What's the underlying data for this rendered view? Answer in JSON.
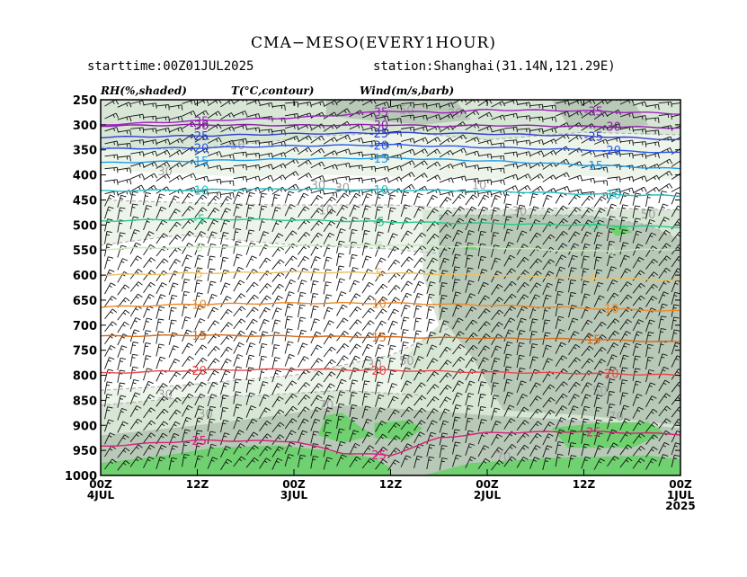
{
  "header": {
    "title": "CMA−MESO(EVERY1HOUR)",
    "starttime": "starttime:00Z01JUL2025",
    "station": "station:Shanghai(31.14N,121.29E)"
  },
  "legend": {
    "rh": "RH(%,shaded)",
    "t": "T(°C,contour)",
    "wind": "Wind(m/s,barb)"
  },
  "chart_data": {
    "type": "heatmap",
    "subtype": "time-height cross section (shaded RH, temperature contours, wind barbs)",
    "y_axis": {
      "label": "",
      "scale": "pressure (reversed)",
      "range": [
        1000,
        250
      ],
      "ticks": [
        250,
        300,
        350,
        400,
        450,
        500,
        550,
        600,
        650,
        700,
        750,
        800,
        850,
        900,
        950,
        1000
      ]
    },
    "x_axis": {
      "label": "",
      "direction": "time decreasing to the right",
      "range_hours_from_left": [
        0,
        72
      ],
      "ticks": [
        {
          "line1": "00Z",
          "line2": "4JUL",
          "line3": ""
        },
        {
          "line1": "12Z",
          "line2": "",
          "line3": ""
        },
        {
          "line1": "00Z",
          "line2": "3JUL",
          "line3": ""
        },
        {
          "line1": "12Z",
          "line2": "",
          "line3": ""
        },
        {
          "line1": "00Z",
          "line2": "2JUL",
          "line3": ""
        },
        {
          "line1": "12Z",
          "line2": "",
          "line3": ""
        },
        {
          "line1": "00Z",
          "line2": "1JUL",
          "line3": "2025"
        }
      ]
    },
    "temperature_contours": [
      {
        "value": -35,
        "label": "-35",
        "color": "#a020c0",
        "levels": [
          [
            0,
            300
          ],
          [
            12,
            292
          ],
          [
            24,
            286
          ],
          [
            30,
            280
          ],
          [
            36,
            272
          ],
          [
            42,
            276
          ],
          [
            48,
            270
          ],
          [
            60,
            272
          ],
          [
            72,
            278
          ]
        ]
      },
      {
        "value": -30,
        "label": "-30",
        "color": "#8c1ea8",
        "levels": [
          [
            0,
            302
          ],
          [
            12,
            300
          ],
          [
            24,
            301
          ],
          [
            36,
            300
          ],
          [
            42,
            303
          ],
          [
            48,
            301
          ],
          [
            60,
            303
          ],
          [
            72,
            306
          ]
        ]
      },
      {
        "value": -25,
        "label": "-25",
        "color": "#2f3fd0",
        "levels": [
          [
            0,
            325
          ],
          [
            12,
            322
          ],
          [
            24,
            318
          ],
          [
            36,
            316
          ],
          [
            48,
            318
          ],
          [
            60,
            322
          ],
          [
            72,
            330
          ]
        ]
      },
      {
        "value": -20,
        "label": "-20",
        "color": "#2c55e8",
        "levels": [
          [
            0,
            348
          ],
          [
            12,
            346
          ],
          [
            24,
            342
          ],
          [
            36,
            340
          ],
          [
            48,
            345
          ],
          [
            60,
            350
          ],
          [
            72,
            356
          ]
        ]
      },
      {
        "value": -15,
        "label": "-15",
        "color": "#1e9be8",
        "levels": [
          [
            0,
            376
          ],
          [
            12,
            372
          ],
          [
            24,
            368
          ],
          [
            36,
            366
          ],
          [
            48,
            372
          ],
          [
            60,
            380
          ],
          [
            72,
            388
          ]
        ]
      },
      {
        "value": -10,
        "label": "-10",
        "color": "#20c0c8",
        "levels": [
          [
            0,
            432
          ],
          [
            12,
            430
          ],
          [
            24,
            428
          ],
          [
            36,
            430
          ],
          [
            48,
            432
          ],
          [
            60,
            438
          ],
          [
            72,
            442
          ]
        ]
      },
      {
        "value": -5,
        "label": "-5",
        "color": "#25c98a",
        "levels": [
          [
            0,
            492
          ],
          [
            12,
            488
          ],
          [
            24,
            490
          ],
          [
            36,
            494
          ],
          [
            48,
            497
          ],
          [
            60,
            500
          ],
          [
            72,
            504
          ]
        ]
      },
      {
        "value": 0,
        "label": "0",
        "color": "#c8e6c0",
        "levels": [
          [
            0,
            548
          ],
          [
            12,
            544
          ],
          [
            24,
            542
          ],
          [
            36,
            540
          ],
          [
            48,
            545
          ],
          [
            60,
            552
          ],
          [
            72,
            548
          ]
        ]
      },
      {
        "value": 5,
        "label": "5",
        "color": "#ecc060",
        "levels": [
          [
            0,
            600
          ],
          [
            12,
            596
          ],
          [
            24,
            594
          ],
          [
            36,
            596
          ],
          [
            48,
            600
          ],
          [
            60,
            606
          ],
          [
            72,
            610
          ]
        ]
      },
      {
        "value": 10,
        "label": "10",
        "color": "#ea8a2a",
        "levels": [
          [
            0,
            664
          ],
          [
            12,
            658
          ],
          [
            24,
            656
          ],
          [
            36,
            656
          ],
          [
            48,
            660
          ],
          [
            60,
            666
          ],
          [
            72,
            672
          ]
        ]
      },
      {
        "value": 15,
        "label": "15",
        "color": "#d66a18",
        "levels": [
          [
            0,
            722
          ],
          [
            12,
            720
          ],
          [
            24,
            722
          ],
          [
            36,
            724
          ],
          [
            48,
            726
          ],
          [
            60,
            728
          ],
          [
            72,
            734
          ]
        ]
      },
      {
        "value": 20,
        "label": "20",
        "color": "#e84848",
        "levels": [
          [
            0,
            796
          ],
          [
            12,
            790
          ],
          [
            24,
            788
          ],
          [
            36,
            790
          ],
          [
            48,
            794
          ],
          [
            60,
            796
          ],
          [
            72,
            800
          ]
        ]
      },
      {
        "value": 25,
        "label": "25",
        "color": "#d8207a",
        "levels": [
          [
            0,
            942
          ],
          [
            12,
            930
          ],
          [
            24,
            932
          ],
          [
            30,
            955
          ],
          [
            36,
            960
          ],
          [
            42,
            925
          ],
          [
            48,
            915
          ],
          [
            60,
            912
          ],
          [
            72,
            918
          ]
        ]
      }
    ],
    "rh_contour_labels": [
      {
        "label": "30",
        "hour": 44,
        "p": 276
      },
      {
        "label": "50",
        "hour": 38,
        "p": 270
      },
      {
        "label": "50",
        "hour": 17,
        "p": 340
      },
      {
        "label": "30",
        "hour": 8,
        "p": 392
      },
      {
        "label": "30",
        "hour": 27,
        "p": 420
      },
      {
        "label": "30",
        "hour": 30,
        "p": 425
      },
      {
        "label": "10",
        "hour": 47,
        "p": 420
      },
      {
        "label": "10",
        "hour": 28,
        "p": 470
      },
      {
        "label": "30",
        "hour": 52,
        "p": 472
      },
      {
        "label": "50",
        "hour": 68,
        "p": 478
      },
      {
        "label": "30",
        "hour": 34,
        "p": 778
      },
      {
        "label": "50",
        "hour": 38,
        "p": 770
      },
      {
        "label": "30",
        "hour": 8,
        "p": 838
      },
      {
        "label": "30",
        "hour": 13,
        "p": 876
      },
      {
        "label": "70",
        "hour": 28,
        "p": 858
      },
      {
        "label": "50",
        "hour": 62,
        "p": 830
      },
      {
        "label": "70",
        "hour": 64,
        "p": 882
      },
      {
        "label": "70",
        "hour": 50,
        "p": 962
      }
    ],
    "shading": {
      "colors": {
        "rh_lt_30": "#ffffff",
        "rh_30_50": "#edf5ea",
        "rh_50_70": "#d7e6d5",
        "rh_70_90": "#b8c9b8",
        "rh_gt_90": "#6fd16f"
      }
    },
    "wind_barbs": "dense field at all levels, predominantly westerly/southwesterly, 5–20 m/s"
  }
}
